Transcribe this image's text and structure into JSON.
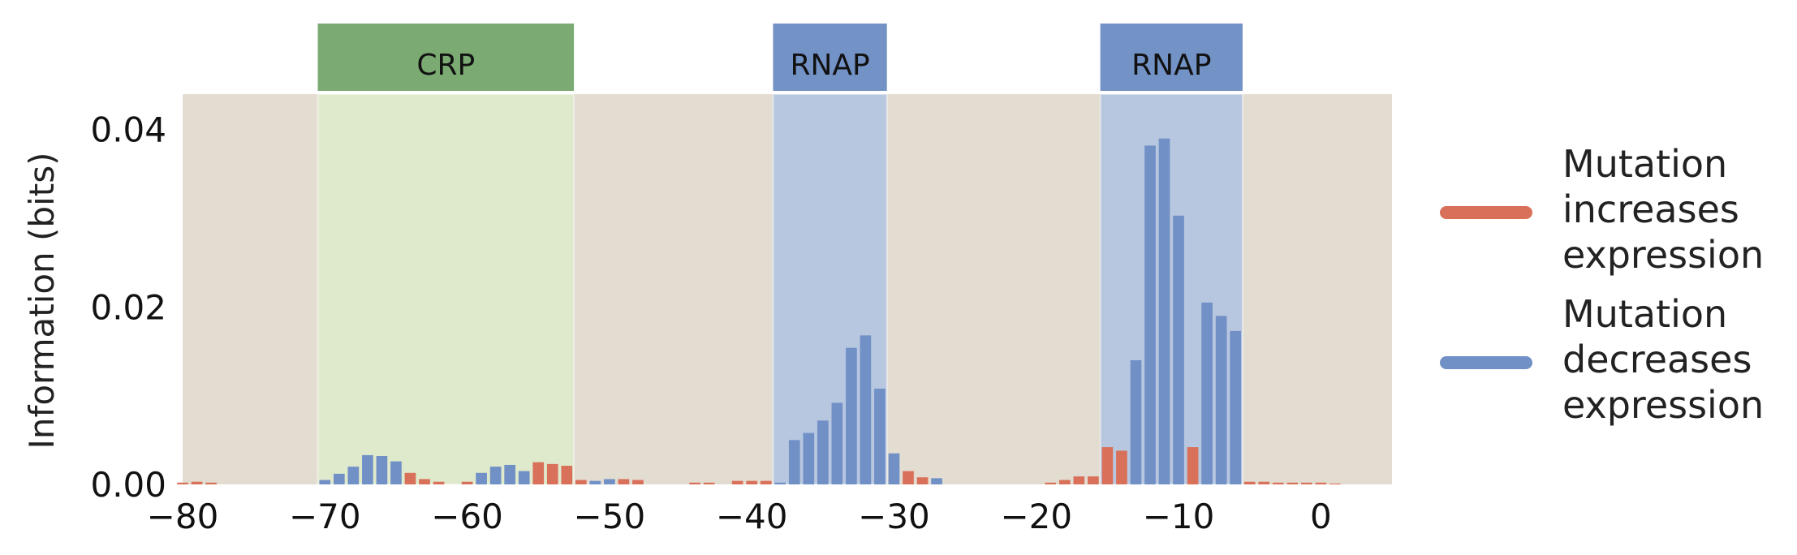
{
  "chart_data": {
    "type": "bar",
    "title": "",
    "xlabel": "",
    "ylabel": "Information (bits)",
    "xlim": [
      -80,
      5
    ],
    "ylim": [
      0,
      0.044
    ],
    "xticks": [
      -80,
      -70,
      -60,
      -50,
      -40,
      -30,
      -20,
      -10,
      0
    ],
    "xtick_labels": [
      "−80",
      "−70",
      "−60",
      "−50",
      "−40",
      "−30",
      "−20",
      "−10",
      "0"
    ],
    "yticks": [
      0.0,
      0.02,
      0.04
    ],
    "ytick_labels": [
      "0.00",
      "0.02",
      "0.04"
    ],
    "grid": false,
    "legend_position": "right",
    "colors": {
      "plot_bg": "#e3ddd1",
      "increase": "#d9705a",
      "decrease": "#7190c6",
      "crp_region": "#dfe9cc",
      "rnap_region": "#b8c7e0",
      "crp_header": "#7baa72",
      "rnap_header": "#7392c6"
    },
    "regions": [
      {
        "label": "CRP",
        "start": -70.5,
        "end": -52.5,
        "kind": "crp"
      },
      {
        "label": "RNAP",
        "start": -38.5,
        "end": -30.5,
        "kind": "rnap"
      },
      {
        "label": "RNAP",
        "start": -15.5,
        "end": -5.5,
        "kind": "rnap"
      }
    ],
    "series": [
      {
        "name": "Mutation increases expression",
        "legend_lines": [
          "Mutation",
          "increases",
          "expression"
        ],
        "key": "increase"
      },
      {
        "name": "Mutation decreases expression",
        "legend_lines": [
          "Mutation",
          "decreases",
          "expression"
        ],
        "key": "decrease"
      }
    ],
    "bars": [
      {
        "x": -80,
        "value": 0.0002,
        "series": "increase"
      },
      {
        "x": -79,
        "value": 0.0003,
        "series": "increase"
      },
      {
        "x": -78,
        "value": 0.0002,
        "series": "increase"
      },
      {
        "x": -70,
        "value": 0.0005,
        "series": "decrease"
      },
      {
        "x": -69,
        "value": 0.0012,
        "series": "decrease"
      },
      {
        "x": -68,
        "value": 0.002,
        "series": "decrease"
      },
      {
        "x": -67,
        "value": 0.0033,
        "series": "decrease"
      },
      {
        "x": -66,
        "value": 0.0032,
        "series": "decrease"
      },
      {
        "x": -65,
        "value": 0.0026,
        "series": "decrease"
      },
      {
        "x": -64,
        "value": 0.0013,
        "series": "increase"
      },
      {
        "x": -63,
        "value": 0.0006,
        "series": "increase"
      },
      {
        "x": -62,
        "value": 0.0003,
        "series": "increase"
      },
      {
        "x": -60,
        "value": 0.0003,
        "series": "increase"
      },
      {
        "x": -59,
        "value": 0.0013,
        "series": "decrease"
      },
      {
        "x": -58,
        "value": 0.002,
        "series": "decrease"
      },
      {
        "x": -57,
        "value": 0.0022,
        "series": "decrease"
      },
      {
        "x": -56,
        "value": 0.0015,
        "series": "decrease"
      },
      {
        "x": -55,
        "value": 0.0025,
        "series": "increase"
      },
      {
        "x": -54,
        "value": 0.0023,
        "series": "increase"
      },
      {
        "x": -53,
        "value": 0.0021,
        "series": "increase"
      },
      {
        "x": -52,
        "value": 0.0005,
        "series": "increase"
      },
      {
        "x": -51,
        "value": 0.0004,
        "series": "decrease"
      },
      {
        "x": -50,
        "value": 0.0006,
        "series": "decrease"
      },
      {
        "x": -49,
        "value": 0.0006,
        "series": "increase"
      },
      {
        "x": -48,
        "value": 0.0005,
        "series": "increase"
      },
      {
        "x": -44,
        "value": 0.0002,
        "series": "increase"
      },
      {
        "x": -43,
        "value": 0.0002,
        "series": "increase"
      },
      {
        "x": -41,
        "value": 0.0004,
        "series": "increase"
      },
      {
        "x": -40,
        "value": 0.0004,
        "series": "increase"
      },
      {
        "x": -39,
        "value": 0.0004,
        "series": "increase"
      },
      {
        "x": -38,
        "value": 0.0002,
        "series": "decrease"
      },
      {
        "x": -37,
        "value": 0.005,
        "series": "decrease"
      },
      {
        "x": -36,
        "value": 0.0058,
        "series": "decrease"
      },
      {
        "x": -35,
        "value": 0.0072,
        "series": "decrease"
      },
      {
        "x": -34,
        "value": 0.0092,
        "series": "decrease"
      },
      {
        "x": -33,
        "value": 0.0154,
        "series": "decrease"
      },
      {
        "x": -32,
        "value": 0.0168,
        "series": "decrease"
      },
      {
        "x": -31,
        "value": 0.0108,
        "series": "decrease"
      },
      {
        "x": -30,
        "value": 0.0035,
        "series": "decrease"
      },
      {
        "x": -29,
        "value": 0.0015,
        "series": "increase"
      },
      {
        "x": -28,
        "value": 0.0008,
        "series": "increase"
      },
      {
        "x": -27,
        "value": 0.0007,
        "series": "decrease"
      },
      {
        "x": -19,
        "value": 0.0002,
        "series": "increase"
      },
      {
        "x": -18,
        "value": 0.0005,
        "series": "increase"
      },
      {
        "x": -17,
        "value": 0.0009,
        "series": "increase"
      },
      {
        "x": -16,
        "value": 0.0009,
        "series": "increase"
      },
      {
        "x": -15,
        "value": 0.0042,
        "series": "increase"
      },
      {
        "x": -14,
        "value": 0.0038,
        "series": "increase"
      },
      {
        "x": -13,
        "value": 0.014,
        "series": "decrease"
      },
      {
        "x": -12,
        "value": 0.0382,
        "series": "decrease"
      },
      {
        "x": -11,
        "value": 0.039,
        "series": "decrease"
      },
      {
        "x": -10,
        "value": 0.0303,
        "series": "decrease"
      },
      {
        "x": -9,
        "value": 0.0042,
        "series": "increase"
      },
      {
        "x": -8,
        "value": 0.0205,
        "series": "decrease"
      },
      {
        "x": -7,
        "value": 0.019,
        "series": "decrease"
      },
      {
        "x": -6,
        "value": 0.0173,
        "series": "decrease"
      },
      {
        "x": -5,
        "value": 0.0003,
        "series": "increase"
      },
      {
        "x": -4,
        "value": 0.0003,
        "series": "increase"
      },
      {
        "x": -3,
        "value": 0.0002,
        "series": "increase"
      },
      {
        "x": -2,
        "value": 0.0002,
        "series": "increase"
      },
      {
        "x": -1,
        "value": 0.0002,
        "series": "increase"
      },
      {
        "x": 0,
        "value": 0.0002,
        "series": "increase"
      },
      {
        "x": 1,
        "value": 0.0001,
        "series": "increase"
      }
    ]
  }
}
